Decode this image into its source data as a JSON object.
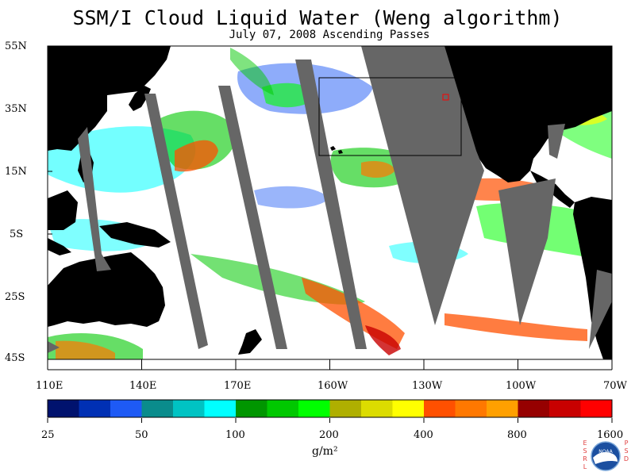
{
  "title": "SSM/I Cloud Liquid Water (Weng algorithm)",
  "subtitle": "July 07, 2008  Ascending Passes",
  "lat_labels": [
    "55N",
    "35N",
    "15N",
    "5S",
    "25S",
    "45S"
  ],
  "lon_labels": [
    "110E",
    "140E",
    "170E",
    "160W",
    "130W",
    "100W",
    "70W"
  ],
  "colorbar": {
    "labels": [
      "25",
      "50",
      "100",
      "200",
      "400",
      "800",
      "1600"
    ],
    "units": "g/m²",
    "colors": [
      "#00126e",
      "#0030b4",
      "#1e5af5",
      "#0a8c8c",
      "#00c3c3",
      "#00ffff",
      "#009600",
      "#00c800",
      "#00ff00",
      "#afaf00",
      "#dcdc00",
      "#ffff00",
      "#ff5000",
      "#ff7800",
      "#ffa000",
      "#960000",
      "#c80000",
      "#ff0000"
    ]
  },
  "map": {
    "background": "#ffffff",
    "land_color": "#000000",
    "no_data_color": "#666666"
  },
  "logo": {
    "left_text": "ESRL",
    "right_text": "PSD",
    "center_text": "NOAA"
  }
}
